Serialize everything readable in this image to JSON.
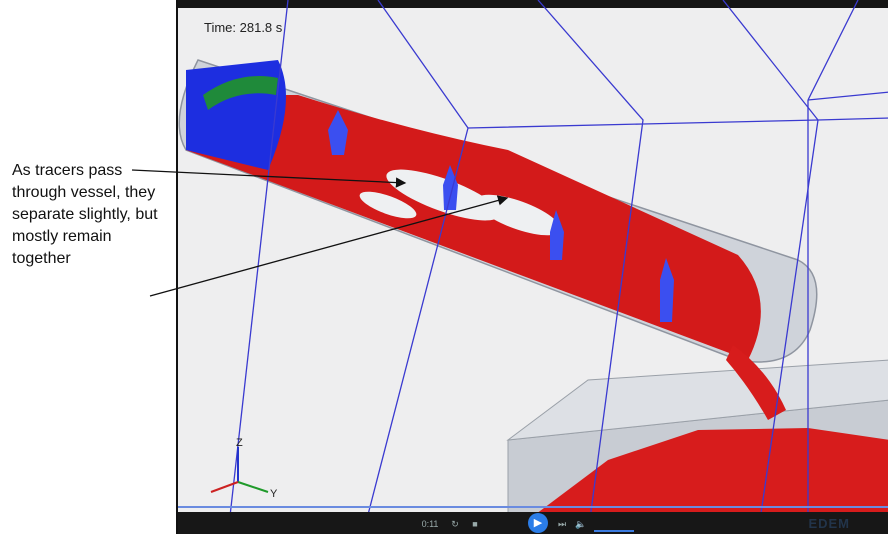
{
  "annotation": {
    "text": "As tracers pass through vessel, they separate slightly, but mostly remain together"
  },
  "viewer": {
    "time_label": "Time: 281.8 s",
    "axes": {
      "z_label": "Z",
      "y_label": "Y",
      "x_label": "X"
    },
    "controls": {
      "time_readout": "0:11",
      "play_symbol": "▶",
      "logo_text": "EDEM"
    }
  },
  "colors": {
    "cylinder": "#c7cbd2",
    "particles_red": "#d71c1c",
    "particles_blue": "#1d2ee0",
    "particles_green": "#1f8a3a",
    "tracers": "#eef0f2",
    "grid_lines": "#3a3ad0"
  }
}
